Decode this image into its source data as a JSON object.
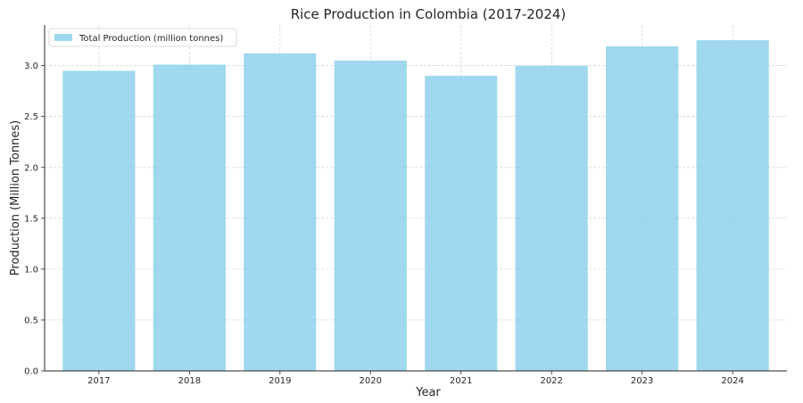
{
  "chart_data": {
    "type": "bar",
    "title": "Rice Production in Colombia (2017-2024)",
    "xlabel": "Year",
    "ylabel": "Production (Million Tonnes)",
    "categories": [
      "2017",
      "2018",
      "2019",
      "2020",
      "2021",
      "2022",
      "2023",
      "2024"
    ],
    "series": [
      {
        "name": "Total Production (million tonnes)",
        "values": [
          2.95,
          3.01,
          3.12,
          3.05,
          2.9,
          3.0,
          3.19,
          3.25
        ]
      }
    ],
    "ylim": [
      0,
      3.4
    ],
    "yticks": [
      "0.0",
      "0.5",
      "1.0",
      "1.5",
      "2.0",
      "2.5",
      "3.0"
    ],
    "grid": true,
    "legend_position": "top-left",
    "colors": {
      "bar": "#87CEEB",
      "grid": "#b0b0b0",
      "axis": "#262626"
    }
  }
}
